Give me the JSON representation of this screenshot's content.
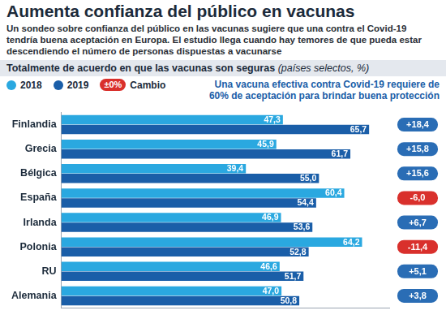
{
  "chart_data": {
    "type": "bar",
    "orientation": "horizontal",
    "title": "Aumenta confianza del público en vacunas",
    "subtitle": "Un sondeo sobre confianza del público en las vacunas sugiere que una contra el Covid-19 tendría buena aceptación en Europa. El estudio llega cuando hay temores de que pueda estar descendiendo el número de personas dispuestas a vacunarse",
    "chart_heading": "Totalmente de acuerdo en que las vacunas son seguras",
    "chart_heading_note": "(países selectos, %)",
    "annotation": "Una vacuna efectiva contra Covid-19 requiere de 60% de aceptación para brindar buena protección",
    "categories": [
      "Finlandia",
      "Grecia",
      "Bélgica",
      "España",
      "Irlanda",
      "Polonia",
      "RU",
      "Alemania"
    ],
    "series": [
      {
        "name": "2018",
        "color": "#2aa8e0",
        "values": [
          47.3,
          45.9,
          39.4,
          60.4,
          46.9,
          64.2,
          46.6,
          47.0
        ],
        "value_labels": [
          "47,3",
          "45,9",
          "39,4",
          "60,4",
          "46,9",
          "64,2",
          "46,6",
          "47,0"
        ]
      },
      {
        "name": "2019",
        "color": "#1a5ea8",
        "values": [
          65.7,
          61.7,
          55.0,
          54.4,
          53.6,
          52.8,
          51.7,
          50.8
        ],
        "value_labels": [
          "65,7",
          "61,7",
          "55,0",
          "54,4",
          "53,6",
          "52,8",
          "51,7",
          "50,8"
        ]
      }
    ],
    "changes": {
      "name": "Cambio",
      "legend_label": "±0%",
      "legend_color": "#d9302c",
      "values": [
        18.4,
        15.8,
        15.6,
        -6.0,
        6.7,
        -11.4,
        5.1,
        3.8
      ],
      "value_labels": [
        "+18,4",
        "+15,8",
        "+15,6",
        "-6,0",
        "+6,7",
        "-11,4",
        "+5,1",
        "+3,8"
      ],
      "colors": [
        "#2a6db5",
        "#2a6db5",
        "#2a6db5",
        "#d9302c",
        "#2a6db5",
        "#d9302c",
        "#2a6db5",
        "#2a6db5"
      ]
    },
    "xlim": [
      0,
      70
    ],
    "grid": false,
    "legend": "top-left",
    "data_labels": true,
    "tick_labels": "y"
  }
}
